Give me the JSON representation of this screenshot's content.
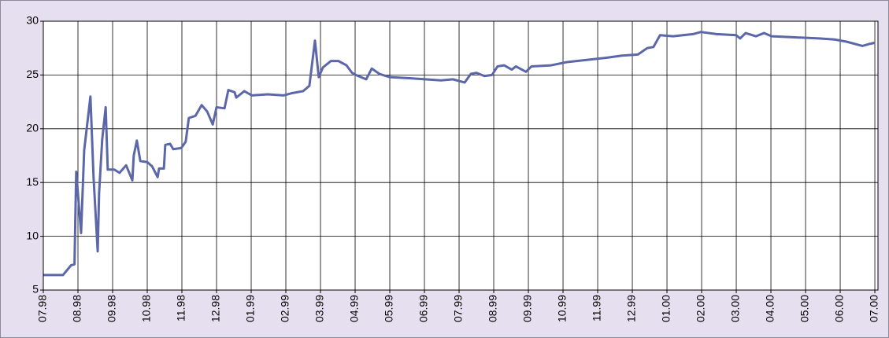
{
  "chart_data": {
    "type": "line",
    "x": [
      0,
      0.57,
      0.8,
      0.9,
      0.95,
      1.09,
      1.18,
      1.36,
      1.45,
      1.57,
      1.61,
      1.7,
      1.8,
      1.86,
      2.05,
      2.2,
      2.39,
      2.57,
      2.61,
      2.7,
      2.8,
      3.0,
      3.14,
      3.3,
      3.34,
      3.48,
      3.52,
      3.66,
      3.75,
      3.98,
      4.11,
      4.2,
      4.39,
      4.57,
      4.73,
      4.89,
      5.0,
      5.23,
      5.34,
      5.52,
      5.57,
      5.8,
      6.02,
      6.48,
      6.93,
      7.16,
      7.5,
      7.68,
      7.84,
      7.95,
      8.07,
      8.3,
      8.52,
      8.75,
      8.91,
      9.09,
      9.32,
      9.48,
      9.7,
      10.0,
      10.57,
      11.02,
      11.48,
      11.82,
      12.16,
      12.34,
      12.5,
      12.73,
      12.95,
      13.11,
      13.3,
      13.52,
      13.64,
      13.93,
      14.09,
      14.66,
      15.11,
      15.68,
      16.25,
      16.7,
      17.16,
      17.43,
      17.61,
      17.8,
      18.18,
      18.75,
      18.98,
      19.43,
      20.0,
      20.11,
      20.27,
      20.57,
      20.8,
      21.02,
      21.7,
      22.39,
      22.84,
      23.18,
      23.64,
      23.86,
      24.0
    ],
    "series": [
      {
        "color": "#5b67a8",
        "values": [
          6.4,
          6.4,
          7.3,
          7.4,
          16,
          10.3,
          18,
          23,
          15.5,
          8.6,
          14,
          19,
          22,
          16.2,
          16.2,
          15.9,
          16.6,
          15.2,
          17.5,
          18.9,
          17,
          16.9,
          16.5,
          15.5,
          16.3,
          16.3,
          18.5,
          18.6,
          18.1,
          18.2,
          18.8,
          21,
          21.2,
          22.2,
          21.6,
          20.4,
          22,
          21.9,
          23.6,
          23.4,
          22.9,
          23.5,
          23.1,
          23.2,
          23.1,
          23.3,
          23.5,
          24.0,
          28.2,
          24.8,
          25.7,
          26.3,
          26.3,
          25.9,
          25.2,
          24.9,
          24.6,
          25.6,
          25.1,
          24.8,
          24.7,
          24.6,
          24.5,
          24.6,
          24.3,
          25.1,
          25.2,
          24.9,
          25.0,
          25.8,
          25.9,
          25.5,
          25.8,
          25.3,
          25.8,
          25.9,
          26.2,
          26.4,
          26.6,
          26.8,
          26.9,
          27.5,
          27.6,
          28.7,
          28.6,
          28.8,
          29.0,
          28.8,
          28.7,
          28.4,
          28.9,
          28.6,
          28.9,
          28.6,
          28.5,
          28.4,
          28.3,
          28.1,
          27.7,
          27.9,
          28.0
        ]
      }
    ],
    "xlim": [
      0,
      24.09
    ],
    "xticks": [
      {
        "value": 0,
        "label": "07.98"
      },
      {
        "value": 1,
        "label": "08.98"
      },
      {
        "value": 2,
        "label": "09.98"
      },
      {
        "value": 3,
        "label": "10.98"
      },
      {
        "value": 4,
        "label": "11.98"
      },
      {
        "value": 5,
        "label": "12.98"
      },
      {
        "value": 6,
        "label": "01.99"
      },
      {
        "value": 7,
        "label": "02.99"
      },
      {
        "value": 8,
        "label": "03.99"
      },
      {
        "value": 9,
        "label": "04.99"
      },
      {
        "value": 10,
        "label": "05.99"
      },
      {
        "value": 11,
        "label": "06.99"
      },
      {
        "value": 12,
        "label": "07.99"
      },
      {
        "value": 13,
        "label": "08.99"
      },
      {
        "value": 14,
        "label": "09.99"
      },
      {
        "value": 15,
        "label": "10.99"
      },
      {
        "value": 16,
        "label": "11.99"
      },
      {
        "value": 17,
        "label": "12.99"
      },
      {
        "value": 18,
        "label": "01.00"
      },
      {
        "value": 19,
        "label": "02.00"
      },
      {
        "value": 20,
        "label": "03.00"
      },
      {
        "value": 21,
        "label": "04.00"
      },
      {
        "value": 22,
        "label": "05.00"
      },
      {
        "value": 23,
        "label": "06.00"
      },
      {
        "value": 24,
        "label": "07.00"
      }
    ],
    "ylim": [
      5,
      30
    ],
    "yticks": [
      5,
      10,
      15,
      20,
      25,
      30
    ],
    "grid": true
  }
}
